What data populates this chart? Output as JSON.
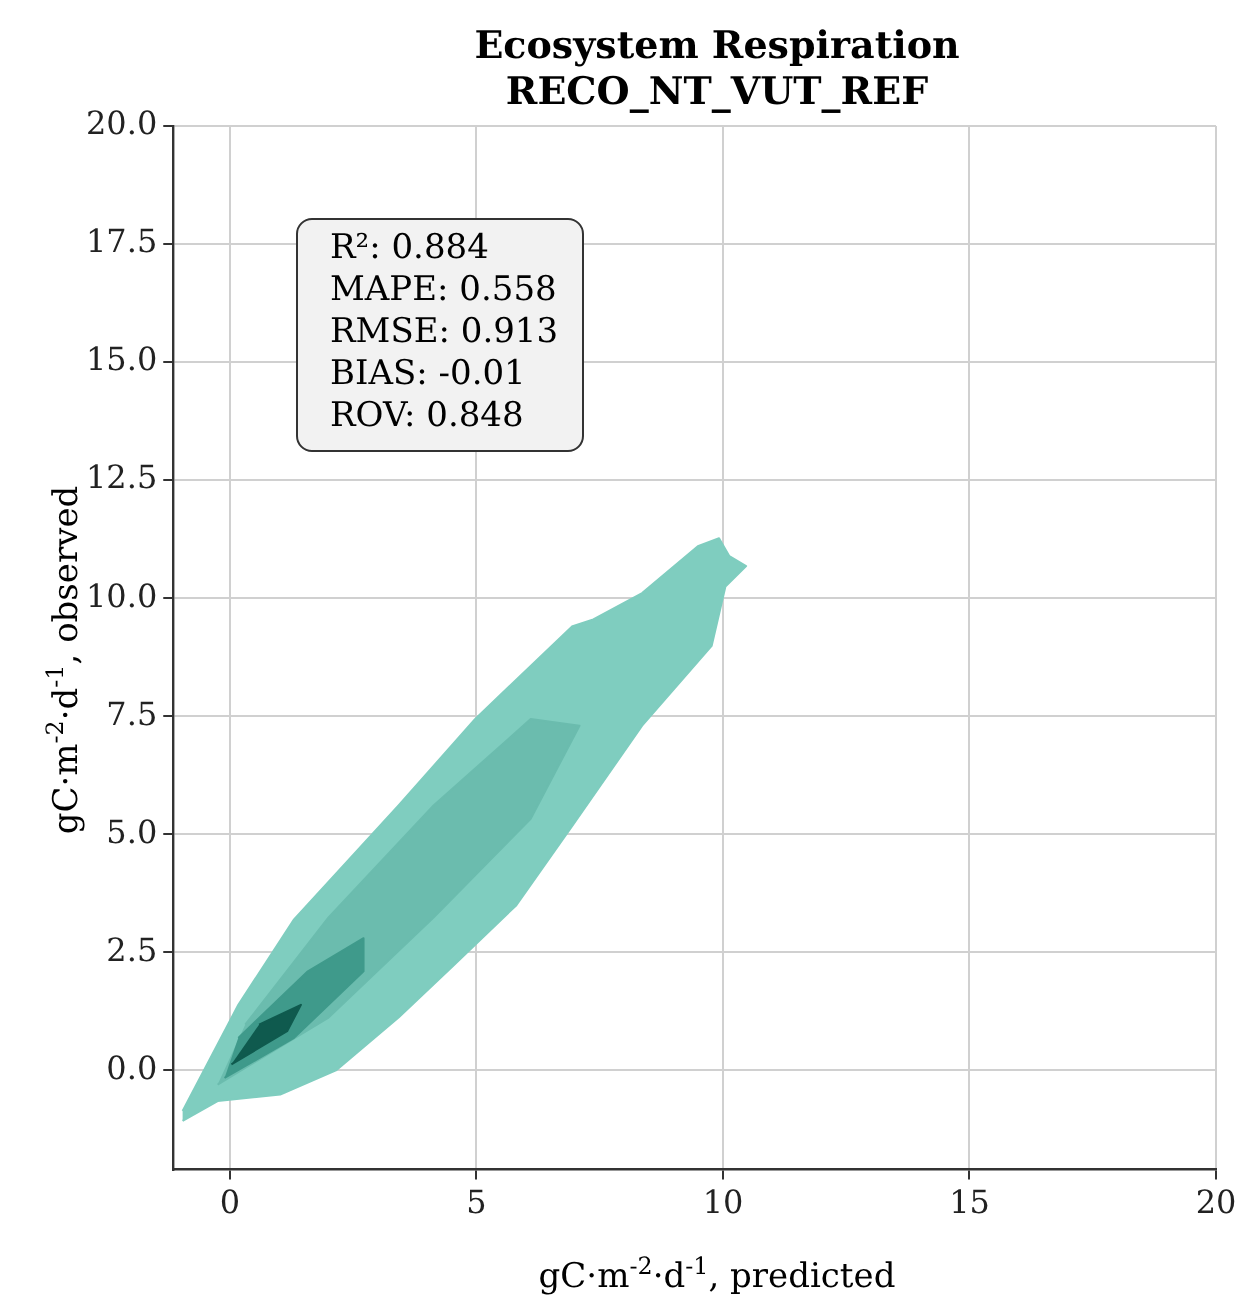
{
  "chart_data": {
    "type": "area",
    "title": "Ecosystem Respiration\nRECO_NT_VUT_REF",
    "xlabel": "gC·m$^{-2}$·d$^{-1}$, predicted",
    "ylabel": "gC·m$^{-2}$·d$^{-1}$, observed",
    "xlim": [
      -1.15,
      20
    ],
    "ylim": [
      -2.1,
      20
    ],
    "xticks": [
      0,
      5,
      10,
      15,
      20
    ],
    "yticks": [
      {
        "value": 0,
        "label": "0.0"
      },
      2.5,
      {
        "value": 5,
        "label": "5.0"
      },
      7.5,
      {
        "value": 10,
        "label": "10.0"
      },
      12.5,
      {
        "value": 15,
        "label": "15.0"
      },
      17.5,
      {
        "value": 20,
        "label": "20.0"
      }
    ],
    "grid": true,
    "annotations": [
      "R²: 0.884",
      "MAPE: 0.558",
      "RMSE: 0.913",
      "BIAS: -0.01",
      "ROV: 0.848"
    ],
    "series": [
      {
        "color": "#7fcdbf",
        "x": [
          -0.96,
          -0.25,
          1.02,
          2.15,
          3.42,
          4.55,
          5.81,
          6.95,
          8.36,
          9.77,
          10.05,
          10.47,
          10.13,
          9.92,
          9.49,
          8.36,
          7.37,
          6.95,
          4.97,
          3.42,
          1.3,
          0.17,
          -0.96
        ],
        "values": [
          -1.07,
          -0.65,
          -0.51,
          0,
          1.12,
          2.24,
          3.5,
          5.19,
          7.3,
          8.99,
          10.25,
          10.68,
          10.89,
          11.27,
          11.1,
          10.11,
          9.55,
          9.41,
          7.44,
          5.61,
          3.2,
          1.39,
          -0.86
        ]
      },
      {
        "color": "#6bbcae",
        "x": [
          -0.25,
          2.0,
          4.13,
          6.1,
          7.09,
          6.1,
          4.13,
          2.0,
          0.31
        ],
        "values": [
          -0.3,
          1.12,
          3.24,
          5.33,
          7.3,
          7.44,
          5.61,
          3.24,
          0.97
        ]
      },
      {
        "color": "#3f9a8b",
        "x": [
          -0.11,
          1.3,
          2.71,
          2.71,
          1.58,
          0.17
        ],
        "values": [
          -0.16,
          0.69,
          2.1,
          2.8,
          2.1,
          0.69
        ]
      },
      {
        "color": "#0f5a4e",
        "x": [
          0.03,
          1.16,
          1.44,
          0.59
        ],
        "values": [
          0.13,
          0.83,
          1.39,
          0.97
        ]
      }
    ]
  }
}
